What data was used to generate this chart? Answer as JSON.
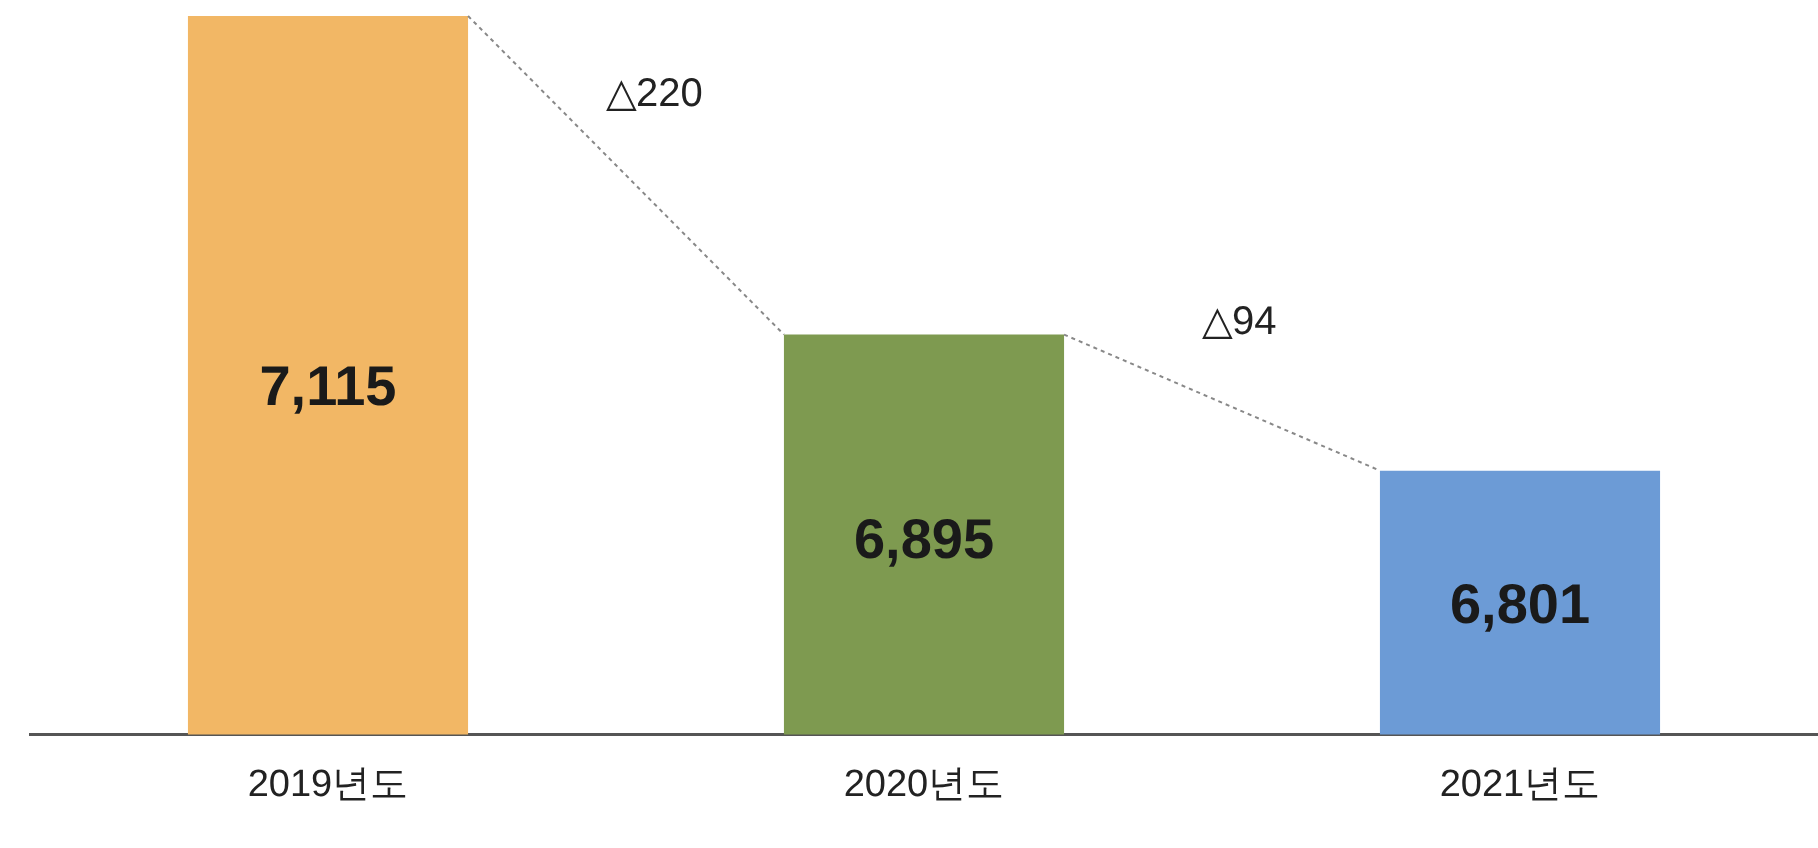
{
  "chart_data": {
    "type": "bar",
    "categories": [
      "2019년도",
      "2020년도",
      "2021년도"
    ],
    "values": [
      7115,
      6895,
      6801
    ],
    "colors": [
      "#f2b765",
      "#7e9a50",
      "#6c9bd6"
    ],
    "value_labels": [
      "7,115",
      "6,895",
      "6,801"
    ],
    "tick_labels": "x",
    "grid": false,
    "legend": false,
    "annotations": [
      "△220",
      "△94"
    ]
  }
}
